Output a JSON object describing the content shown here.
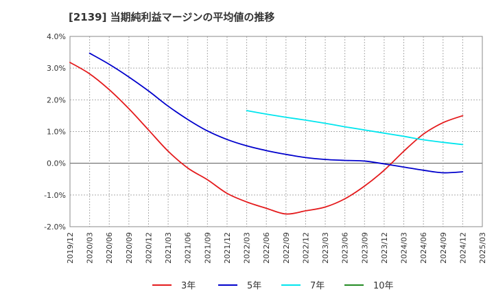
{
  "chart_data": {
    "type": "line",
    "title": "[2139]  当期純利益マージンの平均値の推移",
    "xlabel": "",
    "ylabel": "",
    "x_ticks": [
      "2019/12",
      "2020/03",
      "2020/06",
      "2020/09",
      "2020/12",
      "2021/03",
      "2021/06",
      "2021/09",
      "2021/12",
      "2022/03",
      "2022/06",
      "2022/09",
      "2022/12",
      "2023/03",
      "2023/06",
      "2023/09",
      "2023/12",
      "2024/03",
      "2024/06",
      "2024/09",
      "2024/12",
      "2025/03"
    ],
    "y_ticks": [
      "4.0%",
      "3.0%",
      "2.0%",
      "1.0%",
      "0.0%",
      "-1.0%",
      "-2.0%"
    ],
    "ylim": [
      -2.0,
      4.0
    ],
    "y_unit": "%",
    "grid": true,
    "legend_position": "bottom",
    "series": [
      {
        "name": "3年",
        "color": "#e41a1c",
        "x": [
          "2019/12",
          "2020/03",
          "2020/06",
          "2020/09",
          "2020/12",
          "2021/03",
          "2021/06",
          "2021/09",
          "2021/12",
          "2022/03",
          "2022/06",
          "2022/09",
          "2022/12",
          "2023/03",
          "2023/06",
          "2023/09",
          "2023/12",
          "2024/03",
          "2024/06",
          "2024/09",
          "2024/12"
        ],
        "values": [
          3.18,
          2.82,
          2.32,
          1.72,
          1.05,
          0.38,
          -0.15,
          -0.52,
          -0.95,
          -1.22,
          -1.42,
          -1.6,
          -1.5,
          -1.38,
          -1.12,
          -0.72,
          -0.22,
          0.38,
          0.92,
          1.28,
          1.5
        ]
      },
      {
        "name": "5年",
        "color": "#0000cc",
        "x": [
          "2020/03",
          "2020/06",
          "2020/09",
          "2020/12",
          "2021/03",
          "2021/06",
          "2021/09",
          "2021/12",
          "2022/03",
          "2022/06",
          "2022/09",
          "2022/12",
          "2023/03",
          "2023/06",
          "2023/09",
          "2023/12",
          "2024/03",
          "2024/06",
          "2024/09",
          "2024/12"
        ],
        "values": [
          3.47,
          3.12,
          2.72,
          2.28,
          1.8,
          1.38,
          1.02,
          0.75,
          0.55,
          0.4,
          0.28,
          0.18,
          0.12,
          0.09,
          0.07,
          -0.02,
          -0.12,
          -0.22,
          -0.3,
          -0.27
        ]
      },
      {
        "name": "7年",
        "color": "#00e5ee",
        "x": [
          "2022/03",
          "2022/06",
          "2022/09",
          "2022/12",
          "2023/03",
          "2023/06",
          "2023/09",
          "2023/12",
          "2024/03",
          "2024/06",
          "2024/09",
          "2024/12"
        ],
        "values": [
          1.66,
          1.55,
          1.45,
          1.36,
          1.26,
          1.15,
          1.05,
          0.95,
          0.85,
          0.74,
          0.66,
          0.59
        ]
      },
      {
        "name": "10年",
        "color": "#228b22",
        "x": [],
        "values": []
      }
    ]
  }
}
